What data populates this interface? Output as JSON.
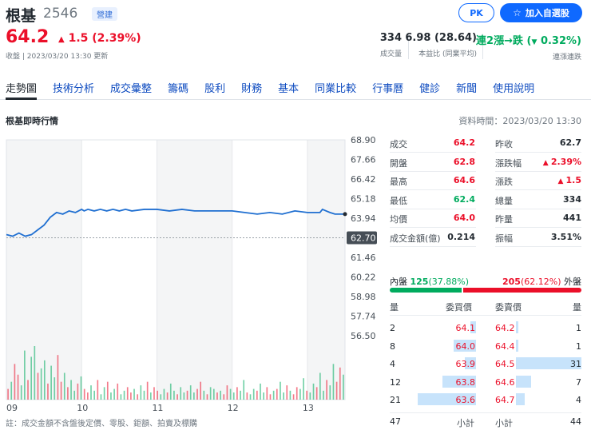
{
  "header": {
    "name": "根基",
    "code": "2546",
    "market": "營建",
    "price": "64.2",
    "change": "1.5 (2.39%)",
    "update": "收盤 | 2023/03/20 13:30 更新",
    "pk_label": "PK",
    "watch_label": "加入自選股",
    "stats": [
      {
        "value": "334",
        "label": "成交量"
      },
      {
        "value": "6.98 (28.64)",
        "label": "本益比 (同業平均)"
      },
      {
        "value_prefix": "連2漲→跌",
        "value_suffix": "0.32%",
        "label": "連漲連跌"
      }
    ]
  },
  "tabs": [
    "走勢圖",
    "技術分析",
    "成交彙整",
    "籌碼",
    "股利",
    "財務",
    "基本",
    "同業比較",
    "行事曆",
    "健診",
    "新聞",
    "使用說明"
  ],
  "section": {
    "title": "根基即時行情",
    "data_time": "資料時間：2023/03/20 13:30"
  },
  "chart_data": {
    "type": "line",
    "x_ticks": [
      "09",
      "10",
      "11",
      "12",
      "13"
    ],
    "y_ticks": [
      "68.90",
      "67.66",
      "66.42",
      "65.18",
      "63.94",
      "62.70",
      "61.46",
      "60.22",
      "58.98",
      "57.74",
      "56.50"
    ],
    "y_range": [
      56.5,
      68.9
    ],
    "reference_price": "62.70",
    "price_series": {
      "t": [
        0,
        5,
        10,
        15,
        20,
        25,
        30,
        35,
        40,
        45,
        50,
        55,
        60,
        62,
        65,
        70,
        75,
        80,
        85,
        90,
        95,
        100,
        110,
        120,
        130,
        140,
        150,
        160,
        170,
        180,
        190,
        200,
        210,
        220,
        230,
        240,
        250,
        252,
        255,
        258,
        262,
        265,
        270
      ],
      "v": [
        62.9,
        62.8,
        63.0,
        62.8,
        62.9,
        63.2,
        63.5,
        64.0,
        64.3,
        64.2,
        64.4,
        64.3,
        64.5,
        64.4,
        64.5,
        64.4,
        64.5,
        64.4,
        64.5,
        64.4,
        64.5,
        64.4,
        64.5,
        64.5,
        64.4,
        64.5,
        64.4,
        64.4,
        64.4,
        64.4,
        64.3,
        64.2,
        64.3,
        64.2,
        64.4,
        64.3,
        64.3,
        64.5,
        64.4,
        64.3,
        64.2,
        64.2,
        64.2
      ]
    },
    "volume_series": [
      12,
      20,
      40,
      28,
      16,
      55,
      22,
      48,
      60,
      30,
      35,
      44,
      18,
      38,
      25,
      50,
      20,
      30,
      14,
      22,
      10,
      18,
      26,
      12,
      8,
      16,
      10,
      22,
      6,
      14,
      20,
      8,
      12,
      18,
      6,
      10,
      14,
      8,
      12,
      6,
      16,
      10,
      20,
      8,
      14,
      10,
      6,
      12,
      8,
      18,
      10,
      6,
      14,
      8,
      10,
      16,
      8,
      12,
      20,
      10,
      6,
      14,
      12,
      8,
      10,
      6,
      16,
      12,
      8,
      14,
      10,
      22,
      8,
      6,
      12,
      10,
      18,
      8,
      14,
      6,
      10,
      12,
      20,
      8,
      16,
      10,
      6,
      14,
      12,
      24,
      10,
      8,
      18,
      14,
      30,
      10,
      22,
      16,
      40,
      20,
      36,
      28
    ]
  },
  "quote": {
    "left": [
      {
        "label": "成交",
        "value": "64.2"
      },
      {
        "label": "開盤",
        "value": "62.8"
      },
      {
        "label": "最高",
        "value": "64.6"
      },
      {
        "label": "最低",
        "value": "62.4"
      },
      {
        "label": "均價",
        "value": "64.0"
      },
      {
        "label": "成交金額(億)",
        "value": "0.214"
      }
    ],
    "right": [
      {
        "label": "昨收",
        "value": "62.7"
      },
      {
        "label": "漲跌幅",
        "value": "2.39%"
      },
      {
        "label": "漲跌",
        "value": "1.5"
      },
      {
        "label": "總量",
        "value": "334"
      },
      {
        "label": "昨量",
        "value": "441"
      },
      {
        "label": "振幅",
        "value": "3.51%"
      }
    ]
  },
  "inout": {
    "inner_label": "內盤",
    "inner_value": "125",
    "inner_pct": "(37.88%)",
    "inner_fraction": 0.3788,
    "outer_value": "205",
    "outer_pct": "(62.12%)",
    "outer_label": "外盤"
  },
  "order_book": {
    "headers": {
      "qty": "量",
      "bid": "委買價",
      "ask": "委賣價",
      "qty2": "量"
    },
    "bids": [
      {
        "qty": "2",
        "price": "64.1"
      },
      {
        "qty": "8",
        "price": "64.0"
      },
      {
        "qty": "4",
        "price": "63.9"
      },
      {
        "qty": "12",
        "price": "63.8"
      },
      {
        "qty": "21",
        "price": "63.6"
      }
    ],
    "asks": [
      {
        "price": "64.2",
        "qty": "1"
      },
      {
        "price": "64.4",
        "qty": "1"
      },
      {
        "price": "64.5",
        "qty": "31"
      },
      {
        "price": "64.6",
        "qty": "7"
      },
      {
        "price": "64.7",
        "qty": "4"
      }
    ],
    "bid_total": "47",
    "bid_total_label": "小計",
    "ask_total_label": "小計",
    "ask_total": "44"
  },
  "footnote": "註：成交金額不含盤後定價、零股、鉅額、拍賣及標購",
  "colors": {
    "up": "#eb0f29",
    "down": "#00ab5e",
    "accent": "#0f69ff",
    "line": "#1f6fd1"
  }
}
